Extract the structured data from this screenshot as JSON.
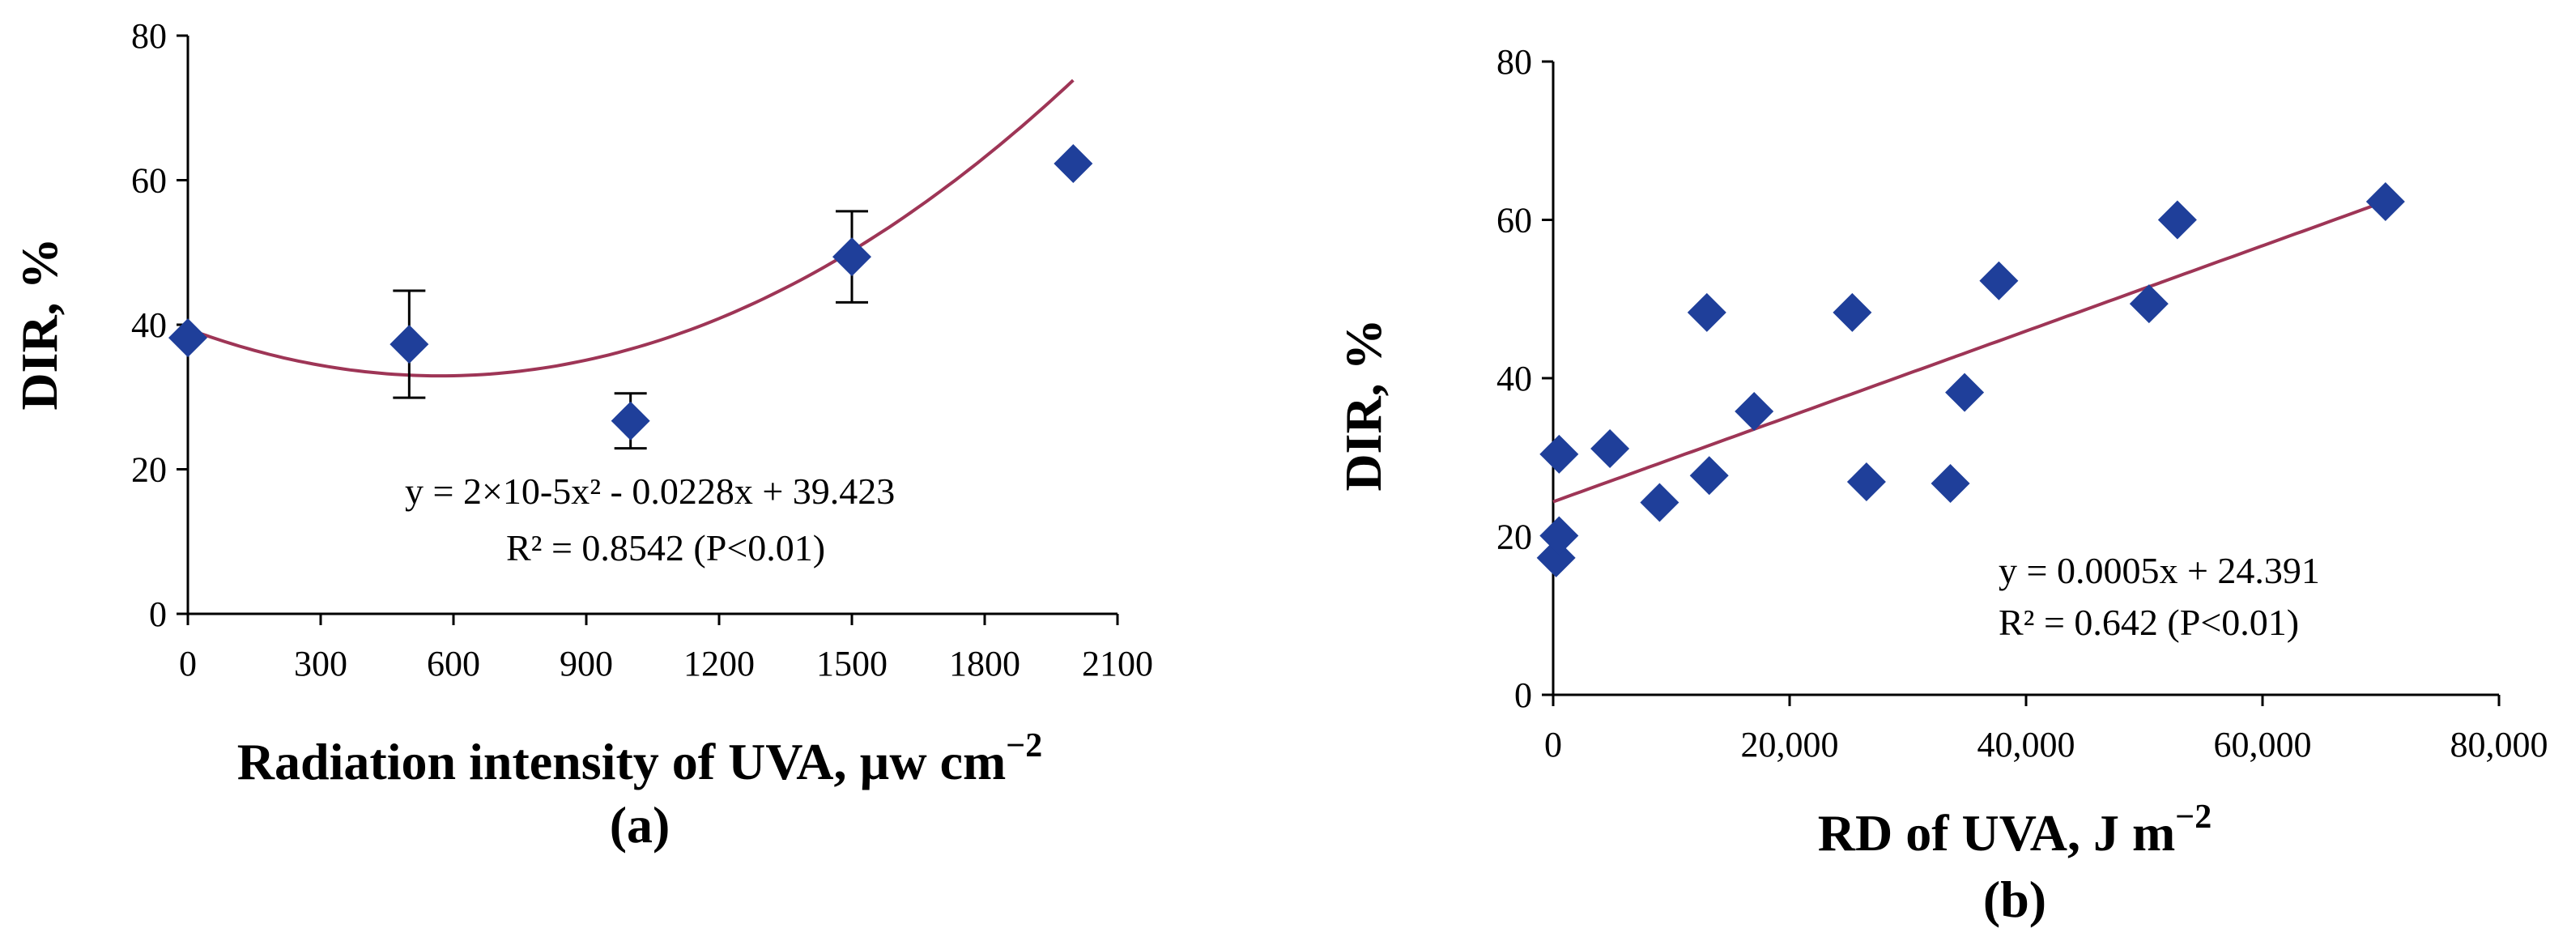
{
  "chart_data": [
    {
      "type": "scatter",
      "panel": "(a)",
      "xlabel_main": "Radiation intensity of UVA, µw cm",
      "xlabel_sup": "−2",
      "ylabel": "DIR, %",
      "xlim": [
        0,
        2100
      ],
      "ylim": [
        0,
        80
      ],
      "xticks": [
        "0",
        "300",
        "600",
        "900",
        "1200",
        "1500",
        "1800",
        "2100"
      ],
      "yticks": [
        "0",
        "20",
        "40",
        "60",
        "80"
      ],
      "points": [
        {
          "x": 0,
          "y": 38.2,
          "err": 0
        },
        {
          "x": 500,
          "y": 37.3,
          "err": 7.4
        },
        {
          "x": 1000,
          "y": 26.7,
          "err": 3.8
        },
        {
          "x": 1500,
          "y": 49.4,
          "err": 6.3
        },
        {
          "x": 2000,
          "y": 62.3,
          "err": 0
        }
      ],
      "fit": {
        "kind": "poly2",
        "a": 2e-05,
        "b": -0.0228,
        "c": 39.423,
        "x_range": [
          0,
          2000
        ]
      },
      "equation_line1": "y = 2×10-5x² - 0.0228x + 39.423",
      "equation_line2": "R² = 0.8542     (P<0.01)"
    },
    {
      "type": "scatter",
      "panel": "(b)",
      "xlabel_main": "RD of UVA, J m",
      "xlabel_sup": "−2",
      "ylabel": "DIR, %",
      "xlim": [
        0,
        80000
      ],
      "ylim": [
        0,
        80
      ],
      "xticks": [
        "0",
        "20,000",
        "40,000",
        "60,000",
        "80,000"
      ],
      "yticks": [
        "0",
        "20",
        "40",
        "60",
        "80"
      ],
      "points": [
        {
          "x": 250,
          "y": 17.3
        },
        {
          "x": 500,
          "y": 20.1
        },
        {
          "x": 500,
          "y": 30.4
        },
        {
          "x": 4800,
          "y": 31.1
        },
        {
          "x": 9000,
          "y": 24.3
        },
        {
          "x": 13000,
          "y": 48.3
        },
        {
          "x": 13200,
          "y": 27.7
        },
        {
          "x": 17000,
          "y": 35.8
        },
        {
          "x": 25300,
          "y": 48.3
        },
        {
          "x": 26500,
          "y": 26.9
        },
        {
          "x": 33600,
          "y": 26.7
        },
        {
          "x": 34800,
          "y": 38.2
        },
        {
          "x": 37700,
          "y": 52.3
        },
        {
          "x": 50400,
          "y": 49.4
        },
        {
          "x": 52800,
          "y": 60.0
        },
        {
          "x": 70400,
          "y": 62.3
        }
      ],
      "fit": {
        "kind": "linear",
        "slope": 0.000539,
        "intercept": 24.391,
        "x_range": [
          0,
          70400
        ]
      },
      "equation_line1": "y = 0.0005x + 24.391",
      "equation_line2": "R² = 0.642   (P<0.01)"
    }
  ],
  "colors": {
    "marker": "#1F3F9A",
    "fit": "#9E3556",
    "axis": "#000000"
  }
}
